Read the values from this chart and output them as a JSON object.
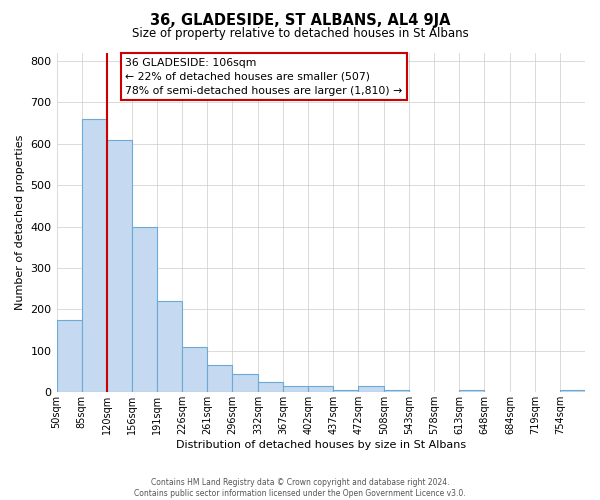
{
  "title": "36, GLADESIDE, ST ALBANS, AL4 9JA",
  "subtitle": "Size of property relative to detached houses in St Albans",
  "xlabel": "Distribution of detached houses by size in St Albans",
  "ylabel": "Number of detached properties",
  "bin_labels": [
    "50sqm",
    "85sqm",
    "120sqm",
    "156sqm",
    "191sqm",
    "226sqm",
    "261sqm",
    "296sqm",
    "332sqm",
    "367sqm",
    "402sqm",
    "437sqm",
    "472sqm",
    "508sqm",
    "543sqm",
    "578sqm",
    "613sqm",
    "648sqm",
    "684sqm",
    "719sqm",
    "754sqm"
  ],
  "bar_heights": [
    175,
    660,
    610,
    400,
    220,
    110,
    65,
    45,
    25,
    15,
    15,
    5,
    15,
    5,
    0,
    0,
    5,
    0,
    0,
    0,
    5
  ],
  "bar_color": "#c5d9f0",
  "bar_edge_color": "#6aaad4",
  "vline_color": "#cc0000",
  "vline_x_bin": 2,
  "annotation_title": "36 GLADESIDE: 106sqm",
  "annotation_line1": "← 22% of detached houses are smaller (507)",
  "annotation_line2": "78% of semi-detached houses are larger (1,810) →",
  "annotation_box_color": "#cc0000",
  "ylim": [
    0,
    820
  ],
  "yticks": [
    0,
    100,
    200,
    300,
    400,
    500,
    600,
    700,
    800
  ],
  "footer_line1": "Contains HM Land Registry data © Crown copyright and database right 2024.",
  "footer_line2": "Contains public sector information licensed under the Open Government Licence v3.0.",
  "bin_edges": [
    50,
    85,
    120,
    156,
    191,
    226,
    261,
    296,
    332,
    367,
    402,
    437,
    472,
    508,
    543,
    578,
    613,
    648,
    684,
    719,
    754,
    789
  ]
}
